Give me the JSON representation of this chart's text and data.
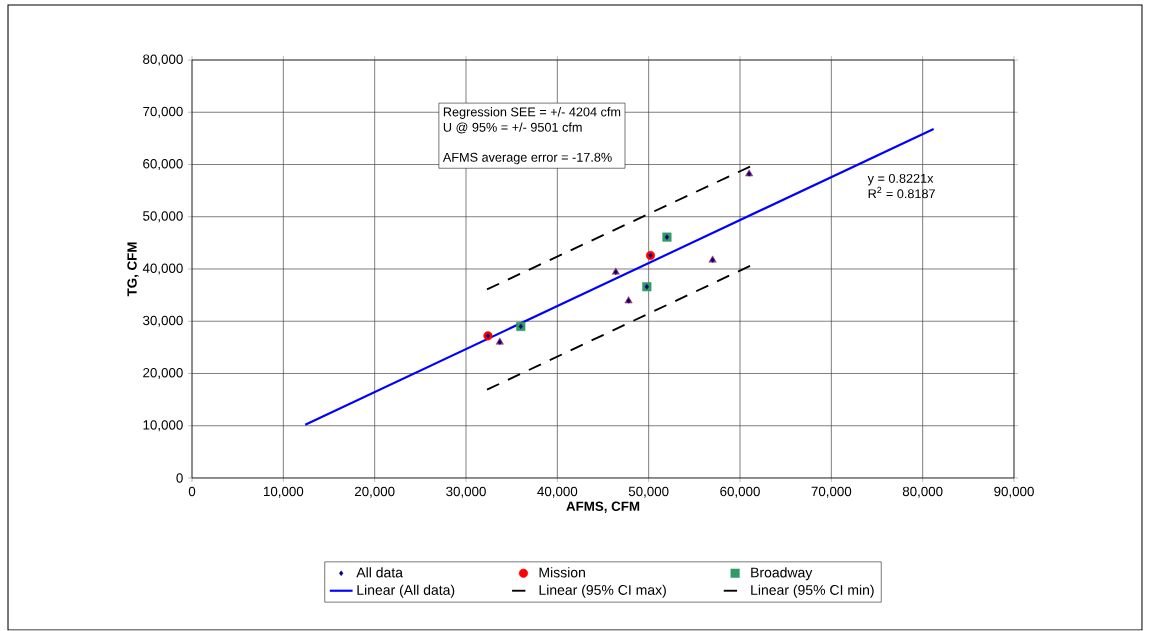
{
  "chart_data": {
    "type": "scatter",
    "xlabel": "AFMS, CFM",
    "ylabel": "TG, CFM",
    "xlim": [
      0,
      90000
    ],
    "ylim": [
      0,
      80000
    ],
    "xticks": [
      0,
      {
        "value": 10000,
        "label": "10,000"
      },
      {
        "value": 20000,
        "label": "20,000"
      },
      {
        "value": 30000,
        "label": "30,000"
      },
      {
        "value": 40000,
        "label": "40,000"
      },
      {
        "value": 50000,
        "label": "50,000"
      },
      {
        "value": 60000,
        "label": "60,000"
      },
      {
        "value": 70000,
        "label": "70,000"
      },
      {
        "value": 80000,
        "label": "80,000"
      },
      {
        "value": 90000,
        "label": "90,000"
      }
    ],
    "yticks": [
      0,
      {
        "value": 10000,
        "label": "10,000"
      },
      {
        "value": 20000,
        "label": "20,000"
      },
      {
        "value": 30000,
        "label": "30,000"
      },
      {
        "value": 40000,
        "label": "40,000"
      },
      {
        "value": 50000,
        "label": "50,000"
      },
      {
        "value": 60000,
        "label": "60,000"
      },
      {
        "value": 70000,
        "label": "70,000"
      },
      {
        "value": 80000,
        "label": "80,000"
      }
    ],
    "grid": true,
    "legend": "bottom",
    "annotations": [
      "Regression SEE = +/- 4204 cfm",
      "U @ 95%  = +/- 9501 cfm",
      "AFMS average error = -17.8%",
      "y = 0.8221x",
      "R$^{2}$ = 0.8187"
    ],
    "series": [
      {
        "name": "All data",
        "marker": "diamond",
        "color": "#000080",
        "x": [
          32400,
          50200,
          36000,
          49800,
          52000,
          33700,
          46400,
          47800,
          57000,
          61000
        ],
        "values": [
          27200,
          42600,
          29000,
          36600,
          46100,
          26000,
          39400,
          33900,
          41700,
          58200
        ]
      },
      {
        "name": "Mission",
        "marker": "circle",
        "color": "#ff0000",
        "x": [
          32400,
          50200
        ],
        "values": [
          27200,
          42600
        ]
      },
      {
        "marker": "triangle",
        "color": "#993366",
        "x": [
          33700,
          46400,
          47800,
          57000,
          61000
        ],
        "values": [
          26000,
          39400,
          33900,
          41700,
          58200
        ]
      },
      {
        "name": "Broadway",
        "marker": "square",
        "color": "#339966",
        "x": [
          36000,
          49800,
          52000
        ],
        "values": [
          29000,
          36600,
          46100
        ]
      },
      {
        "name": "Linear (All data)",
        "type": "line",
        "marker": "none",
        "line_style": "solid",
        "color": "#0000ff",
        "x": [
          12400,
          81200
        ],
        "values": [
          10200,
          66800
        ]
      },
      {
        "name": "Linear (95% CI max)",
        "type": "line",
        "marker": "none",
        "line_style": "dashed",
        "color": "#000000",
        "x": [
          32300,
          61100
        ],
        "values": [
          36100,
          59600
        ]
      },
      {
        "name": "Linear (95% CI  min)",
        "type": "line",
        "marker": "none",
        "line_style": "dashed",
        "color": "#000000",
        "x": [
          32300,
          61100
        ],
        "values": [
          16900,
          40600
        ]
      }
    ]
  }
}
